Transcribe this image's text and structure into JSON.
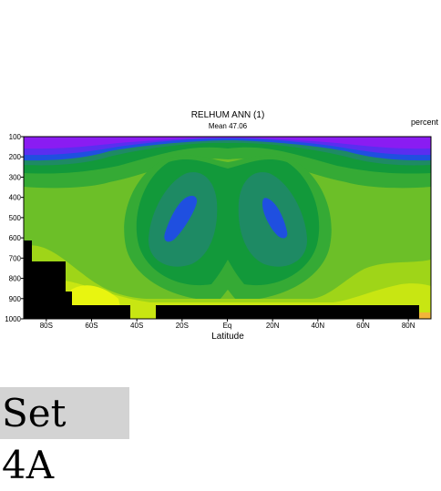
{
  "chart_data": {
    "type": "heatmap",
    "title": "RELHUM ANN (1)",
    "subtitle": "Mean 47.06",
    "units": "percent",
    "xlabel": "Latitude",
    "ylabel": "",
    "xlim": [
      -90,
      90
    ],
    "ylim": [
      1000,
      100
    ],
    "x_ticks": [
      {
        "value": -80,
        "label": "80S"
      },
      {
        "value": -60,
        "label": "60S"
      },
      {
        "value": -40,
        "label": "40S"
      },
      {
        "value": -20,
        "label": "20S"
      },
      {
        "value": 0,
        "label": "Eq"
      },
      {
        "value": 20,
        "label": "20N"
      },
      {
        "value": 40,
        "label": "40N"
      },
      {
        "value": 60,
        "label": "60N"
      },
      {
        "value": 80,
        "label": "80N"
      }
    ],
    "y_ticks": [
      {
        "value": 100,
        "label": "100"
      },
      {
        "value": 200,
        "label": "200"
      },
      {
        "value": 300,
        "label": "300"
      },
      {
        "value": 400,
        "label": "400"
      },
      {
        "value": 500,
        "label": "500"
      },
      {
        "value": 600,
        "label": "600"
      },
      {
        "value": 700,
        "label": "700"
      },
      {
        "value": 800,
        "label": "800"
      },
      {
        "value": 900,
        "label": "900"
      },
      {
        "value": 1000,
        "label": "1000"
      }
    ],
    "levels": [
      {
        "name": "lev-violet",
        "color": "#8a1cf2"
      },
      {
        "name": "lev-indigo",
        "color": "#5a2ef0"
      },
      {
        "name": "lev-blue",
        "color": "#1f4fe0"
      },
      {
        "name": "lev-teal",
        "color": "#1e8a64"
      },
      {
        "name": "lev-darkgreen",
        "color": "#12993a"
      },
      {
        "name": "lev-green",
        "color": "#35aa35"
      },
      {
        "name": "lev-midgreen",
        "color": "#6cbf28"
      },
      {
        "name": "lev-lightgreen",
        "color": "#9fd518"
      },
      {
        "name": "lev-yellowgreen",
        "color": "#c8e612"
      },
      {
        "name": "lev-yellow",
        "color": "#e8f510"
      },
      {
        "name": "lev-orange",
        "color": "#f2b43a"
      }
    ],
    "missing_color": "#000000"
  },
  "footer": {
    "set_label": "Set 4A"
  }
}
